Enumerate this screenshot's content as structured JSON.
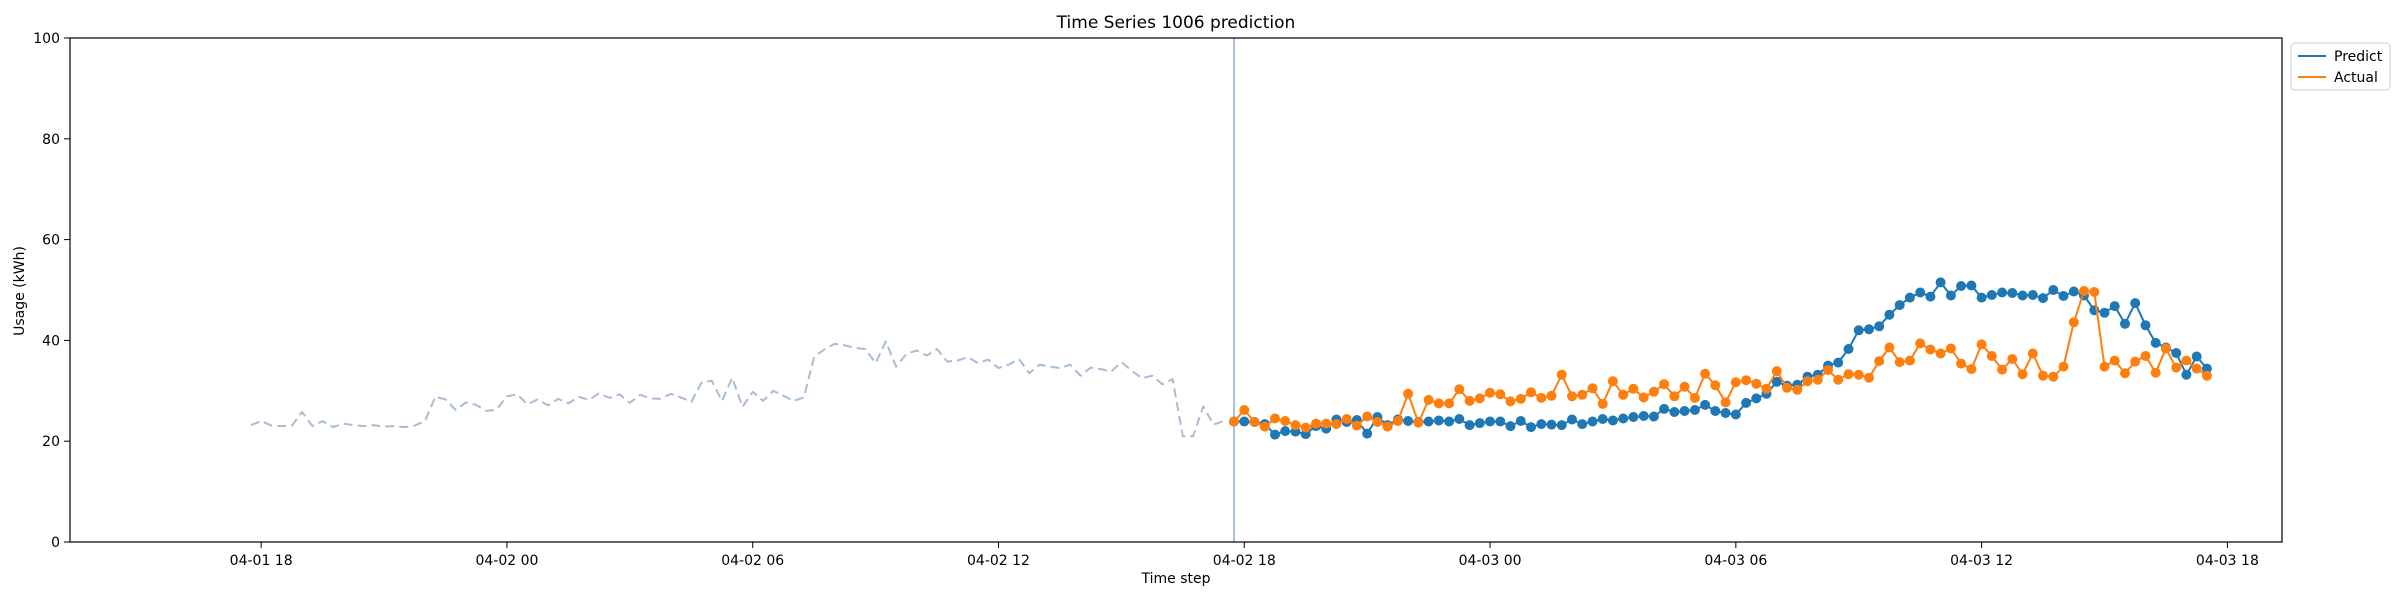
{
  "chart_data": {
    "type": "line",
    "title": "Time Series 1006 prediction",
    "xlabel": "Time step",
    "ylabel": "Usage (kWh)",
    "ylim": [
      0,
      100
    ],
    "yticks": [
      0,
      20,
      40,
      60,
      80,
      100
    ],
    "x_axis_type": "datetime",
    "xlim": [
      "2025-04-01T13:20",
      "2025-04-03T19:20"
    ],
    "xticks": [
      {
        "value": "2025-04-01T18:00",
        "label": "04-01 18"
      },
      {
        "value": "2025-04-02T00:00",
        "label": "04-02 00"
      },
      {
        "value": "2025-04-02T06:00",
        "label": "04-02 06"
      },
      {
        "value": "2025-04-02T12:00",
        "label": "04-02 12"
      },
      {
        "value": "2025-04-02T18:00",
        "label": "04-02 18"
      },
      {
        "value": "2025-04-03T00:00",
        "label": "04-03 00"
      },
      {
        "value": "2025-04-03T06:00",
        "label": "04-03 06"
      },
      {
        "value": "2025-04-03T12:00",
        "label": "04-03 12"
      },
      {
        "value": "2025-04-03T18:00",
        "label": "04-03 18"
      }
    ],
    "grid": false,
    "legend_placement": "outside top-right",
    "forecast_start": "2025-04-02T17:45",
    "history": {
      "style": "dashed",
      "color": "#a8bdd4",
      "start": "2025-04-01T17:45",
      "step_minutes": 15,
      "values": [
        23.2,
        24.0,
        23.1,
        23.0,
        23.1,
        25.8,
        23.0,
        24.0,
        22.8,
        23.5,
        23.2,
        23.0,
        23.2,
        22.9,
        23.0,
        22.8,
        23.1,
        24.0,
        28.8,
        28.3,
        26.2,
        27.7,
        27.2,
        26.0,
        26.3,
        28.9,
        29.3,
        27.3,
        28.3,
        27.1,
        28.4,
        27.5,
        28.8,
        28.2,
        29.5,
        28.6,
        29.3,
        27.6,
        29.2,
        28.5,
        28.4,
        29.4,
        28.7,
        27.8,
        31.6,
        32.0,
        28.0,
        32.6,
        26.8,
        29.8,
        28.0,
        30.0,
        29.0,
        28.0,
        28.7,
        36.8,
        38.2,
        39.3,
        39.0,
        38.5,
        38.3,
        35.5,
        39.8,
        34.8,
        37.3,
        38.0,
        37.0,
        38.3,
        35.8,
        36.0,
        36.7,
        35.5,
        36.2,
        34.5,
        35.2,
        36.3,
        33.5,
        35.2,
        34.8,
        34.5,
        35.2,
        33.0,
        34.6,
        34.3,
        33.8,
        35.7,
        34.0,
        32.5,
        33.0,
        31.3,
        32.3,
        21.0,
        21.0,
        26.9,
        23.3,
        24.0
      ]
    },
    "forecast": {
      "start": "2025-04-02T17:45",
      "step_minutes": 15,
      "marker": "circle"
    },
    "series": [
      {
        "name": "Predict",
        "color": "#1f77b4",
        "values": [
          23.9,
          23.9,
          23.8,
          23.4,
          21.3,
          22.0,
          21.9,
          21.4,
          23.0,
          22.5,
          24.3,
          23.8,
          24.2,
          21.5,
          24.8,
          23.2,
          24.3,
          24.0,
          23.8,
          23.9,
          24.1,
          23.9,
          24.4,
          23.2,
          23.6,
          23.9,
          23.9,
          23.0,
          24.0,
          22.8,
          23.4,
          23.3,
          23.2,
          24.3,
          23.4,
          23.9,
          24.4,
          24.1,
          24.5,
          24.8,
          25.0,
          24.9,
          26.4,
          25.8,
          26.0,
          26.2,
          27.2,
          26.0,
          25.6,
          25.3,
          27.6,
          28.5,
          29.4,
          31.8,
          31.0,
          31.2,
          32.8,
          33.2,
          35.0,
          35.6,
          38.3,
          42.0,
          42.2,
          42.8,
          45.1,
          47.0,
          48.5,
          49.5,
          48.7,
          51.5,
          48.9,
          50.8,
          50.9,
          48.5,
          49.0,
          49.5,
          49.4,
          48.9,
          49.0,
          48.4,
          50.0,
          48.8,
          49.7,
          48.9,
          46.0,
          45.5,
          46.8,
          43.3,
          47.4,
          43.0,
          39.5,
          38.6,
          37.5,
          33.2,
          36.8,
          34.4
        ]
      },
      {
        "name": "Actual",
        "color": "#ff7f0e",
        "values": [
          23.9,
          26.2,
          23.8,
          22.9,
          24.5,
          24.0,
          23.2,
          22.7,
          23.5,
          23.5,
          23.4,
          24.4,
          23.1,
          24.9,
          23.8,
          22.9,
          24.0,
          29.4,
          23.7,
          28.2,
          27.5,
          27.5,
          30.3,
          28.0,
          28.5,
          29.6,
          29.3,
          27.9,
          28.4,
          29.7,
          28.6,
          29.0,
          33.2,
          28.9,
          29.2,
          30.5,
          27.4,
          31.9,
          29.2,
          30.4,
          28.7,
          29.8,
          31.3,
          28.9,
          30.8,
          28.6,
          33.4,
          31.1,
          27.7,
          31.7,
          32.1,
          31.4,
          30.4,
          33.9,
          30.6,
          30.2,
          31.9,
          32.2,
          34.1,
          32.2,
          33.3,
          33.2,
          32.6,
          35.9,
          38.6,
          35.7,
          36.0,
          39.4,
          38.2,
          37.4,
          38.4,
          35.4,
          34.3,
          39.2,
          36.9,
          34.2,
          36.3,
          33.3,
          37.4,
          33.0,
          32.8,
          34.8,
          43.6,
          49.8,
          49.6,
          34.8,
          36.0,
          33.5,
          35.8,
          36.9,
          33.6,
          38.4,
          34.6,
          36.0,
          34.4,
          33.0
        ]
      }
    ]
  }
}
